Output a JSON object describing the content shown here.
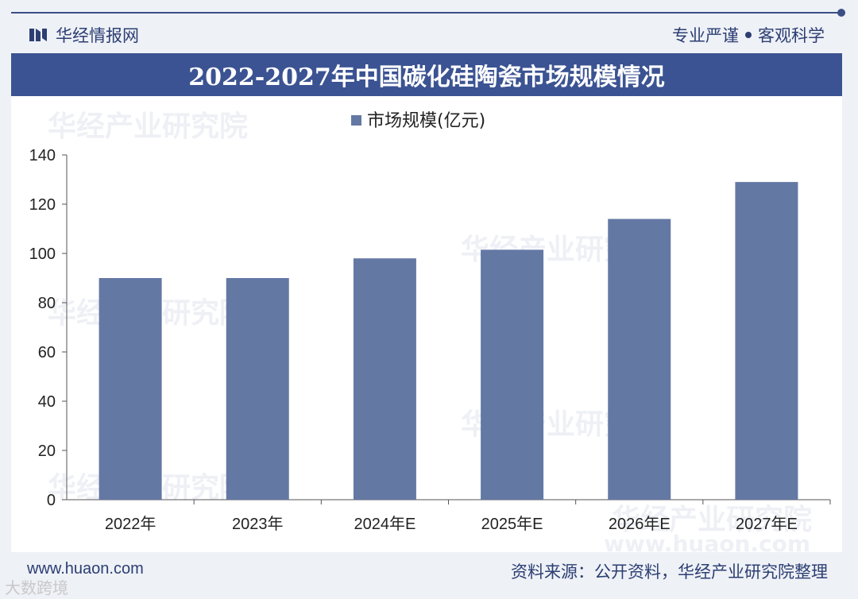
{
  "header": {
    "brand": "华经情报网",
    "slogan_left": "专业严谨",
    "slogan_right": "客观科学"
  },
  "chart_data": {
    "type": "bar",
    "title": "2022-2027年中国碳化硅陶瓷市场规模情况",
    "categories": [
      "2022年",
      "2023年",
      "2024年E",
      "2025年E",
      "2026年E",
      "2027年E"
    ],
    "series": [
      {
        "name": "市场规模(亿元)",
        "values": [
          90,
          90,
          98,
          101.5,
          114,
          129
        ]
      }
    ],
    "ylim": [
      0,
      140
    ],
    "yticks": [
      0,
      20,
      40,
      60,
      80,
      100,
      120,
      140
    ],
    "ytick_labels": [
      "0",
      "20",
      "40",
      "60",
      "80",
      "100",
      "120",
      "140"
    ],
    "legend": "top-center",
    "grid": false,
    "colors": {
      "bar": "#6478a4",
      "title_bg": "#3b5392",
      "text": "#2c3e73"
    }
  },
  "footer": {
    "url": "www.huaon.com",
    "source": "资料来源：公开资料，华经产业研究院整理"
  },
  "watermarks": {
    "institute": "华经产业研究院",
    "site": "www.huaon.com",
    "corner": "大数跨境"
  }
}
